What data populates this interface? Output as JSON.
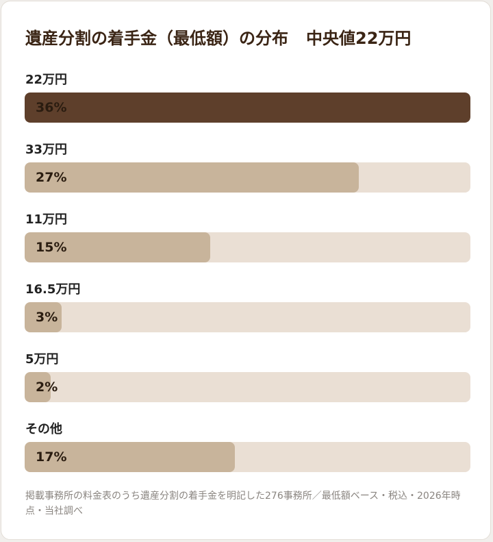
{
  "title": "遺産分割の着手金（最低額）の分布",
  "median_label": "中央値22万円",
  "chart_data": {
    "type": "bar",
    "orientation": "horizontal",
    "title": "遺産分割の着手金（最低額）の分布",
    "categories": [
      "22万円",
      "33万円",
      "11万円",
      "16.5万円",
      "5万円",
      "その他"
    ],
    "values": [
      36,
      27,
      15,
      3,
      2,
      17
    ],
    "value_labels": [
      "36%",
      "27%",
      "15%",
      "3%",
      "2%",
      "17%"
    ],
    "max": 36,
    "colors": {
      "top_bar": "#5e3f2b",
      "bar": "#c8b49b",
      "track": "#eadfd4"
    }
  },
  "footnote": "掲載事務所の料金表のうち遺産分割の着手金を明記した276事務所／最低額ベース・税込・2026年時点・当社調べ"
}
